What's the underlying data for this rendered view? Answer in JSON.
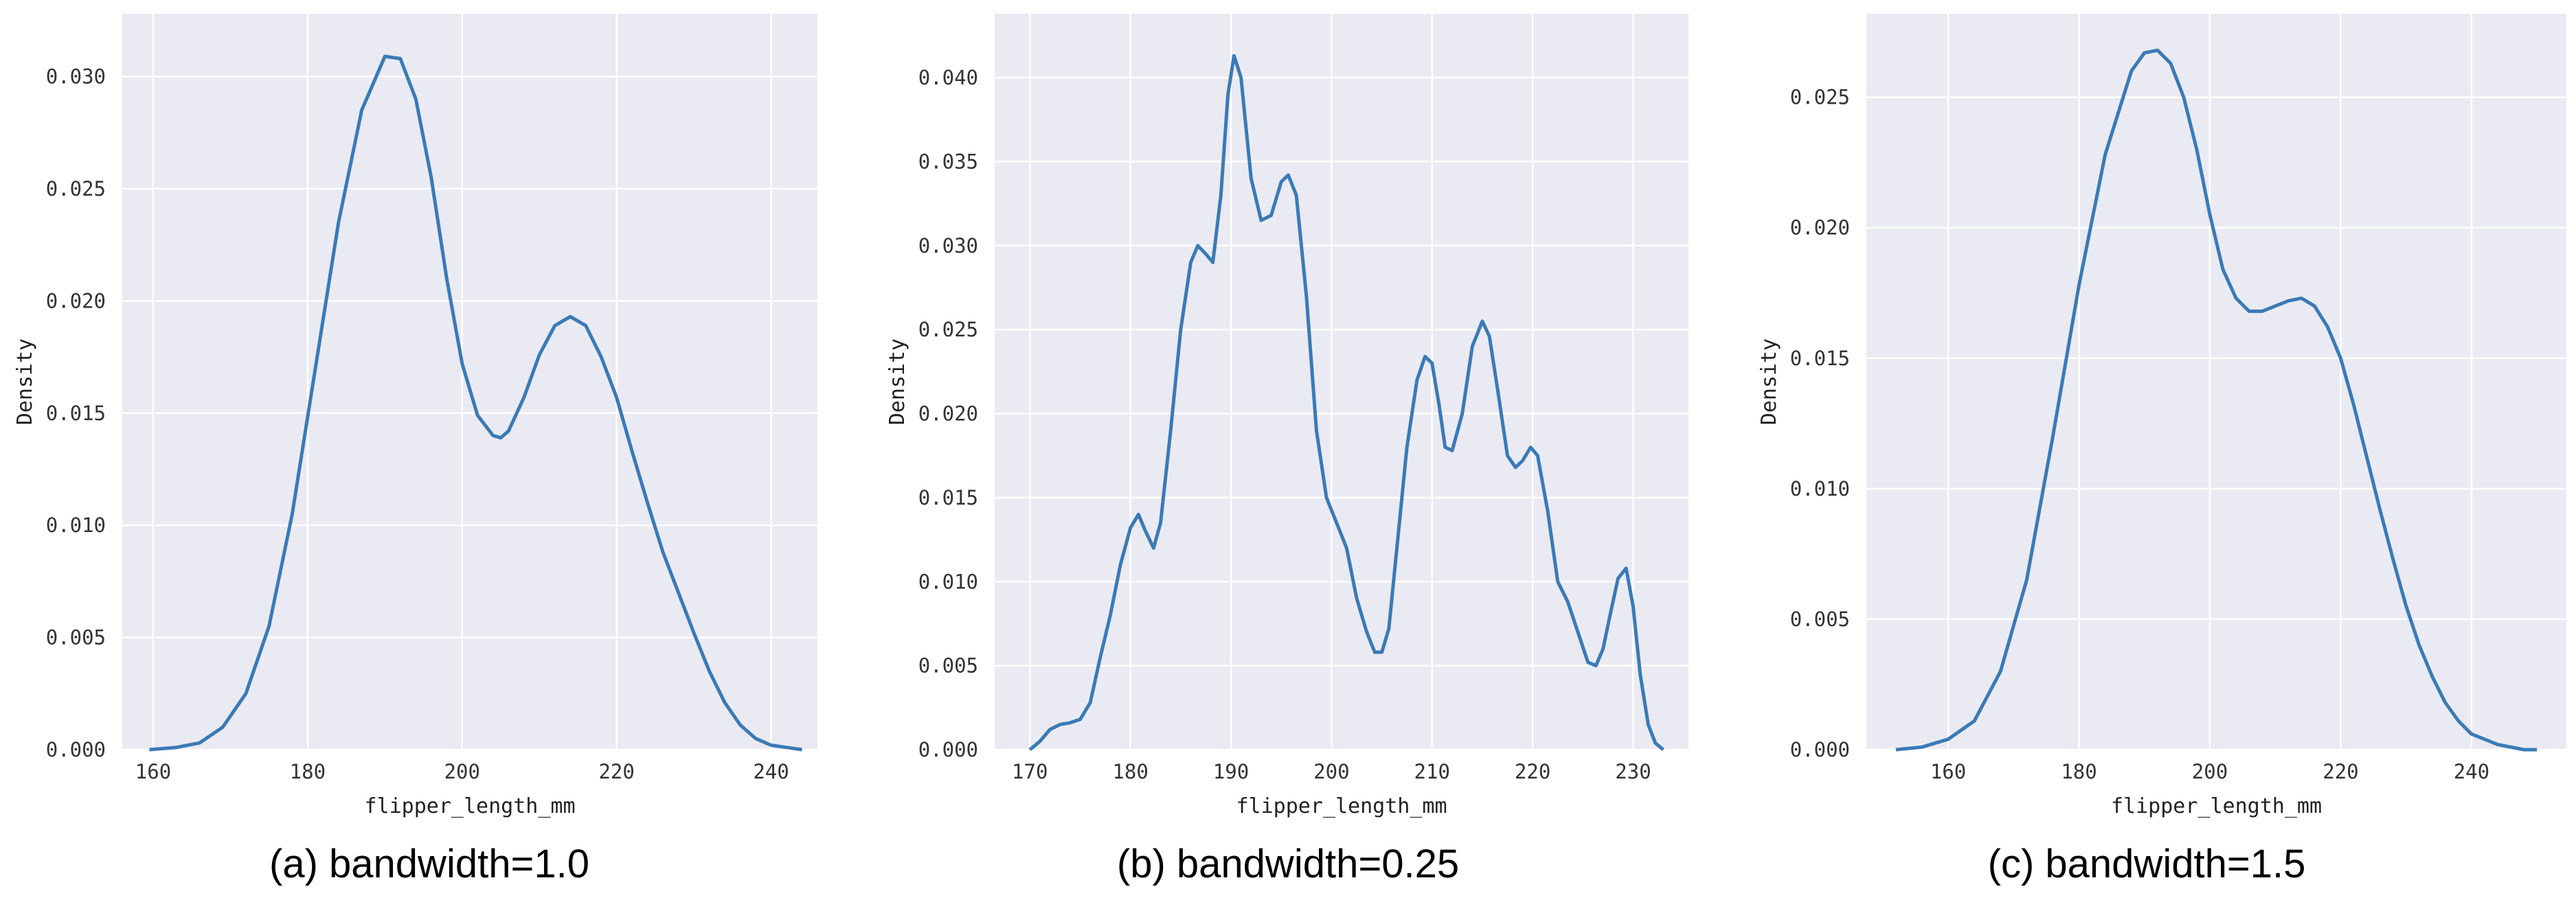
{
  "charts": [
    {
      "caption": "(a) bandwidth=1.0",
      "chart_data": {
        "type": "line",
        "title": "",
        "xlabel": "flipper_length_mm",
        "ylabel": "Density",
        "xlim": [
          156,
          246
        ],
        "ylim": [
          0,
          0.0328
        ],
        "xticks": [
          160,
          180,
          200,
          220,
          240
        ],
        "yticks": [
          0.0,
          0.005,
          0.01,
          0.015,
          0.02,
          0.025,
          0.03
        ],
        "ytick_labels": [
          "0.000",
          "0.005",
          "0.010",
          "0.015",
          "0.020",
          "0.025",
          "0.030"
        ],
        "grid": true,
        "line_color": "#3a7ab6",
        "x": [
          159.5,
          163,
          166,
          169,
          172,
          175,
          178,
          181,
          184,
          187,
          190,
          192,
          194,
          196,
          198,
          200,
          202,
          204,
          205,
          206,
          208,
          210,
          212,
          214,
          216,
          218,
          220,
          222,
          224,
          226,
          228,
          230,
          232,
          234,
          236,
          238,
          240,
          242,
          244
        ],
        "y": [
          0.0,
          0.0001,
          0.0003,
          0.001,
          0.0025,
          0.0055,
          0.0105,
          0.017,
          0.0235,
          0.0285,
          0.0309,
          0.0308,
          0.029,
          0.0255,
          0.021,
          0.0172,
          0.0149,
          0.014,
          0.0139,
          0.0142,
          0.0157,
          0.0176,
          0.0189,
          0.0193,
          0.0189,
          0.0175,
          0.0157,
          0.0133,
          0.011,
          0.0088,
          0.007,
          0.0052,
          0.0035,
          0.0021,
          0.0011,
          0.0005,
          0.0002,
          0.0001,
          0.0
        ]
      }
    },
    {
      "caption": "(b) bandwidth=0.25",
      "chart_data": {
        "type": "line",
        "title": "",
        "xlabel": "flipper_length_mm",
        "ylabel": "Density",
        "xlim": [
          166.5,
          235.5
        ],
        "ylim": [
          0,
          0.0438
        ],
        "xticks": [
          170,
          180,
          190,
          200,
          210,
          220,
          230
        ],
        "yticks": [
          0.0,
          0.005,
          0.01,
          0.015,
          0.02,
          0.025,
          0.03,
          0.035,
          0.04
        ],
        "ytick_labels": [
          "0.000",
          "0.005",
          "0.010",
          "0.015",
          "0.020",
          "0.025",
          "0.030",
          "0.035",
          "0.040"
        ],
        "grid": true,
        "line_color": "#3a7ab6",
        "x": [
          170,
          171,
          172,
          173,
          174,
          175,
          176,
          177,
          178,
          179,
          180,
          180.8,
          181.5,
          182.3,
          183,
          184,
          185,
          186,
          186.7,
          187.5,
          188.2,
          189,
          189.7,
          190.3,
          191,
          192,
          193,
          194,
          195,
          195.7,
          196.5,
          197.5,
          198.5,
          199.5,
          200.5,
          201.5,
          202.5,
          203.5,
          204.3,
          205,
          205.7,
          206.5,
          207.5,
          208.5,
          209.3,
          210,
          210.7,
          211.3,
          212,
          213,
          214,
          215,
          215.7,
          216.5,
          217.5,
          218.3,
          219,
          219.8,
          220.5,
          221.5,
          222.5,
          223.5,
          224.5,
          225.5,
          226.3,
          227,
          227.7,
          228.5,
          229.3,
          230,
          230.7,
          231.5,
          232.2,
          233
        ],
        "y": [
          0.0,
          0.0005,
          0.0012,
          0.0015,
          0.0016,
          0.0018,
          0.0028,
          0.0055,
          0.008,
          0.011,
          0.0132,
          0.014,
          0.013,
          0.012,
          0.0135,
          0.019,
          0.025,
          0.029,
          0.03,
          0.0295,
          0.029,
          0.033,
          0.039,
          0.0413,
          0.04,
          0.034,
          0.0315,
          0.0318,
          0.0338,
          0.0342,
          0.033,
          0.027,
          0.019,
          0.015,
          0.0135,
          0.012,
          0.009,
          0.007,
          0.0058,
          0.0058,
          0.0072,
          0.012,
          0.018,
          0.022,
          0.0234,
          0.023,
          0.0205,
          0.018,
          0.0178,
          0.02,
          0.024,
          0.0255,
          0.0246,
          0.0215,
          0.0175,
          0.0168,
          0.0172,
          0.018,
          0.0175,
          0.0142,
          0.01,
          0.0088,
          0.007,
          0.0052,
          0.005,
          0.006,
          0.008,
          0.0102,
          0.0108,
          0.0085,
          0.0045,
          0.0015,
          0.0004,
          0.0
        ]
      }
    },
    {
      "caption": "(c) bandwidth=1.5",
      "chart_data": {
        "type": "line",
        "title": "",
        "xlabel": "flipper_length_mm",
        "ylabel": "Density",
        "xlim": [
          147.5,
          254.5
        ],
        "ylim": [
          0,
          0.0282
        ],
        "xticks": [
          160,
          180,
          200,
          220,
          240
        ],
        "yticks": [
          0.0,
          0.005,
          0.01,
          0.015,
          0.02,
          0.025
        ],
        "ytick_labels": [
          "0.000",
          "0.005",
          "0.010",
          "0.015",
          "0.020",
          "0.025"
        ],
        "grid": true,
        "line_color": "#3a7ab6",
        "x": [
          152,
          156,
          160,
          164,
          168,
          172,
          176,
          180,
          184,
          188,
          190,
          192,
          194,
          196,
          198,
          200,
          202,
          204,
          206,
          208,
          210,
          212,
          214,
          216,
          218,
          220,
          222,
          224,
          226,
          228,
          230,
          232,
          234,
          236,
          238,
          240,
          244,
          248,
          250
        ],
        "y": [
          0.0,
          0.0001,
          0.0004,
          0.0011,
          0.003,
          0.0065,
          0.012,
          0.0178,
          0.0228,
          0.026,
          0.0267,
          0.0268,
          0.0263,
          0.025,
          0.023,
          0.0205,
          0.0184,
          0.0173,
          0.0168,
          0.0168,
          0.017,
          0.0172,
          0.0173,
          0.017,
          0.0162,
          0.015,
          0.0132,
          0.0112,
          0.0092,
          0.0073,
          0.0055,
          0.004,
          0.0028,
          0.0018,
          0.0011,
          0.0006,
          0.0002,
          0.0,
          0.0
        ]
      }
    }
  ]
}
